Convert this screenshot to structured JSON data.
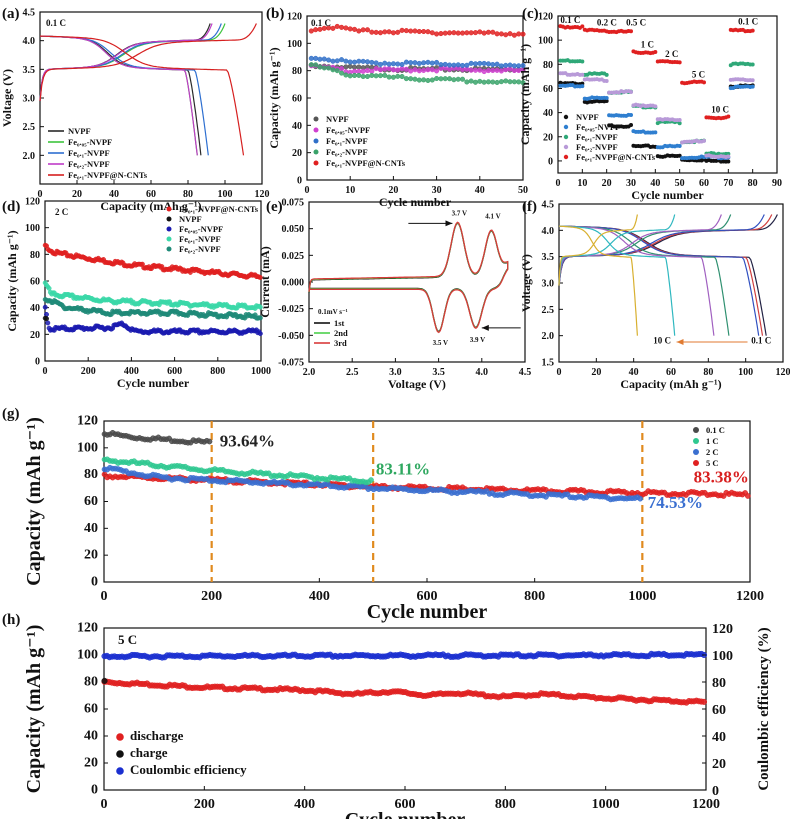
{
  "chart_data": [
    {
      "panel": "(a)",
      "type": "line",
      "xlabel": "Capacity (mAh g⁻¹)",
      "ylabel": "Voltage (V)",
      "xlim": [
        0,
        120
      ],
      "ylim": [
        1.5,
        4.5
      ],
      "xticks": [
        "0",
        "20",
        "40",
        "60",
        "80",
        "100",
        "120"
      ],
      "yticks": [
        "2.0",
        "2.5",
        "3.0",
        "3.5",
        "4.0",
        "4.5"
      ],
      "annotations": [
        {
          "text": "0.1 C"
        }
      ],
      "legend": "bottom-left",
      "series": [
        {
          "name": "NVPF",
          "color": "#2a2a2a",
          "charge_capacity": 92,
          "discharge_capacity": 87
        },
        {
          "name": "Fe₀.₀₅-NVPF",
          "color": "#3ec43e",
          "charge_capacity": 100,
          "discharge_capacity": 85
        },
        {
          "name": "Fe₀.₁-NVPF",
          "color": "#2e6fd0",
          "charge_capacity": 98,
          "discharge_capacity": 91
        },
        {
          "name": "Fe₀.₂-NVPF",
          "color": "#c03cc8",
          "charge_capacity": 93,
          "discharge_capacity": 85
        },
        {
          "name": "Fe₀.₁-NVPF@N-CNTs",
          "color": "#d62020",
          "charge_capacity": 117,
          "discharge_capacity": 110
        }
      ]
    },
    {
      "panel": "(b)",
      "type": "scatter",
      "xlabel": "Cycle number",
      "ylabel": "Capacity (mAh g⁻¹)",
      "xlim": [
        0,
        50
      ],
      "ylim": [
        0,
        120
      ],
      "xticks": [
        "0",
        "10",
        "20",
        "30",
        "40",
        "50"
      ],
      "yticks": [
        "0",
        "20",
        "40",
        "60",
        "80",
        "100",
        "120"
      ],
      "annotations": [
        {
          "text": "0.1 C"
        }
      ],
      "legend": "bottom-left",
      "series": [
        {
          "name": "NVPF",
          "color": "#555555",
          "points": [
            [
              1,
              84
            ],
            [
              10,
              82
            ],
            [
              25,
              81
            ],
            [
              50,
              81
            ]
          ]
        },
        {
          "name": "Fe₀.₀₅-NVPF",
          "color": "#d040d0",
          "points": [
            [
              1,
              83
            ],
            [
              10,
              80
            ],
            [
              30,
              81
            ],
            [
              50,
              80
            ]
          ]
        },
        {
          "name": "Fe₀.₁-NVPF",
          "color": "#2f6fc8",
          "points": [
            [
              1,
              90
            ],
            [
              10,
              86
            ],
            [
              30,
              85
            ],
            [
              50,
              84
            ]
          ]
        },
        {
          "name": "Fe₀.₂-NVPF",
          "color": "#3aa36a",
          "points": [
            [
              1,
              84
            ],
            [
              10,
              77
            ],
            [
              25,
              74
            ],
            [
              50,
              71
            ]
          ]
        },
        {
          "name": "Fe₀.₁-NVPF@N-CNTs",
          "color": "#e02020",
          "points": [
            [
              1,
              110
            ],
            [
              6,
              112
            ],
            [
              12,
              109
            ],
            [
              30,
              108
            ],
            [
              50,
              107
            ]
          ]
        }
      ]
    },
    {
      "panel": "(c)",
      "type": "scatter",
      "xlabel": "Cycle number",
      "ylabel": "Capacity (mAh g⁻¹)",
      "xlim": [
        0,
        90
      ],
      "ylim": [
        -10,
        120
      ],
      "xticks": [
        "0",
        "10",
        "20",
        "30",
        "40",
        "50",
        "60",
        "70",
        "80",
        "90"
      ],
      "yticks": [
        "0",
        "20",
        "40",
        "60",
        "80",
        "100",
        "120"
      ],
      "rates": [
        "0.1 C",
        "0.2 C",
        "0.5 C",
        "1 C",
        "2 C",
        "5 C",
        "10 C",
        "0.1 C"
      ],
      "cycles_per_rate": 10,
      "legend": "bottom-left",
      "series": [
        {
          "name": "NVPF",
          "color": "#111111",
          "values": [
            64,
            49,
            29,
            12,
            4,
            1,
            0,
            62
          ]
        },
        {
          "name": "Fe₀.₀₅-NVPF",
          "color": "#2f7fd0",
          "values": [
            62,
            52,
            38,
            24,
            12,
            3,
            3,
            61
          ]
        },
        {
          "name": "Fe₀.₁-NVPF",
          "color": "#2fa878",
          "values": [
            83,
            72,
            57,
            45,
            32,
            16,
            6,
            80
          ]
        },
        {
          "name": "Fe₀.₂-NVPF",
          "color": "#b89ad8",
          "values": [
            72,
            67,
            57,
            46,
            34,
            16,
            4,
            67
          ]
        },
        {
          "name": "Fe₀.₁-NVPF@N-CNTs",
          "color": "#e02020",
          "values": [
            111,
            108,
            107,
            90,
            82,
            65,
            36,
            108
          ]
        }
      ]
    },
    {
      "panel": "(d)",
      "type": "scatter",
      "xlabel": "Cycle number",
      "ylabel": "Capacity (mAh g⁻¹)",
      "xlim": [
        0,
        1000
      ],
      "ylim": [
        0,
        120
      ],
      "xticks": [
        "0",
        "200",
        "400",
        "600",
        "800",
        "1000"
      ],
      "yticks": [
        "0",
        "20",
        "40",
        "60",
        "80",
        "100",
        "120"
      ],
      "annotations": [
        {
          "text": "2 C"
        }
      ],
      "legend": "top-right",
      "series": [
        {
          "name": "Fe₀.₁-NVPF@N-CNTs",
          "color": "#e02020",
          "points": [
            [
              1,
              86
            ],
            [
              50,
              81
            ],
            [
              200,
              77
            ],
            [
              400,
              72
            ],
            [
              600,
              69
            ],
            [
              800,
              66
            ],
            [
              1000,
              63
            ]
          ]
        },
        {
          "name": "NVPF",
          "color": "#111111",
          "points": [
            [
              1,
              33
            ],
            [
              12,
              28
            ]
          ]
        },
        {
          "name": "Fe₀.₀₅-NVPF",
          "color": "#1a1ab0",
          "points": [
            [
              1,
              40
            ],
            [
              20,
              24
            ],
            [
              300,
              25
            ],
            [
              360,
              28
            ],
            [
              420,
              22
            ],
            [
              1000,
              22
            ]
          ]
        },
        {
          "name": "Fe₀.₁-NVPF",
          "color": "#3ad8a8",
          "points": [
            [
              1,
              58
            ],
            [
              30,
              50
            ],
            [
              300,
              45
            ],
            [
              600,
              43
            ],
            [
              1000,
              40
            ]
          ]
        },
        {
          "name": "Fe₀.₂-NVPF",
          "color": "#1f8a78",
          "points": [
            [
              1,
              47
            ],
            [
              100,
              40
            ],
            [
              300,
              36
            ],
            [
              600,
              36
            ],
            [
              1000,
              33
            ]
          ]
        }
      ]
    },
    {
      "panel": "(e)",
      "type": "line",
      "xlabel": "Voltage (V)",
      "ylabel": "Current (mA)",
      "xlim": [
        2.0,
        4.5
      ],
      "ylim": [
        -0.075,
        0.075
      ],
      "xticks": [
        "2.0",
        "2.5",
        "3.0",
        "3.5",
        "4.0",
        "4.5"
      ],
      "yticks": [
        "-0.075",
        "-0.050",
        "-0.025",
        "0.000",
        "0.025",
        "0.050",
        "0.075"
      ],
      "scan_rate": "0.1mV s⁻¹",
      "peaks": [
        {
          "label": "3.7 V",
          "voltage": 3.72,
          "current": 0.055
        },
        {
          "label": "4.1 V",
          "voltage": 4.11,
          "current": 0.052
        },
        {
          "label": "3.5 V",
          "voltage": 3.5,
          "current": -0.046
        },
        {
          "label": "3.9 V",
          "voltage": 3.93,
          "current": -0.043
        }
      ],
      "series": [
        {
          "name": "1st",
          "color": "#111111"
        },
        {
          "name": "2nd",
          "color": "#4cd04c"
        },
        {
          "name": "3rd",
          "color": "#d83a3a"
        }
      ]
    },
    {
      "panel": "(f)",
      "type": "line",
      "xlabel": "Capacity (mAh g⁻¹)",
      "ylabel": "Voltage (V)",
      "xlim": [
        0,
        120
      ],
      "ylim": [
        1.5,
        4.5
      ],
      "xticks": [
        "0",
        "20",
        "40",
        "60",
        "80",
        "100",
        "120"
      ],
      "yticks": [
        "1.5",
        "2.0",
        "2.5",
        "3.0",
        "3.5",
        "4.0",
        "4.5"
      ],
      "annotations": [
        {
          "text": "10 C"
        },
        {
          "text": "0.1 C"
        }
      ],
      "series": [
        {
          "color": "#222244",
          "charge_capacity": 117,
          "discharge_capacity": 111
        },
        {
          "color": "#d04040",
          "charge_capacity": 114,
          "discharge_capacity": 109
        },
        {
          "color": "#3050c0",
          "charge_capacity": 110,
          "discharge_capacity": 107
        },
        {
          "color": "#2f9070",
          "charge_capacity": 92,
          "discharge_capacity": 91
        },
        {
          "color": "#a060c0",
          "charge_capacity": 87,
          "discharge_capacity": 83
        },
        {
          "color": "#30b8c0",
          "charge_capacity": 62,
          "discharge_capacity": 62
        },
        {
          "color": "#d8b030",
          "charge_capacity": 42,
          "discharge_capacity": 42
        }
      ]
    },
    {
      "panel": "(g)",
      "type": "scatter",
      "xlabel": "Cycle number",
      "ylabel": "Capacity (mAh g⁻¹)",
      "xlim": [
        0,
        1200
      ],
      "ylim": [
        0,
        120
      ],
      "xticks": [
        "0",
        "200",
        "400",
        "600",
        "800",
        "1000",
        "1200"
      ],
      "yticks": [
        "0",
        "20",
        "40",
        "60",
        "80",
        "100",
        "120"
      ],
      "reference_lines": [
        200,
        500,
        1000
      ],
      "legend": "top-right",
      "series": [
        {
          "name": "0.1 C",
          "color": "#4a4a4a",
          "retention": "93.64%",
          "points": [
            [
              1,
              111
            ],
            [
              50,
              108
            ],
            [
              200,
              104
            ]
          ]
        },
        {
          "name": "1 C",
          "color": "#2fc890",
          "retention": "83.11%",
          "points": [
            [
              1,
              91
            ],
            [
              200,
              83
            ],
            [
              500,
              75
            ]
          ]
        },
        {
          "name": "2 C",
          "color": "#3a6fd0",
          "retention": "74.53%",
          "points": [
            [
              1,
              85
            ],
            [
              100,
              78
            ],
            [
              500,
              70
            ],
            [
              800,
              65
            ],
            [
              1000,
              62
            ]
          ]
        },
        {
          "name": "5 C",
          "color": "#e02020",
          "retention": "83.38%",
          "points": [
            [
              1,
              79
            ],
            [
              200,
              76
            ],
            [
              500,
              71
            ],
            [
              800,
              68
            ],
            [
              1200,
              65
            ]
          ]
        }
      ]
    },
    {
      "panel": "(h)",
      "type": "scatter",
      "xlabel": "Cycle number",
      "ylabel": "Capacity (mAh g⁻¹)",
      "ylabel_right": "Coulombic efficiency (%)",
      "xlim": [
        0,
        1200
      ],
      "ylim": [
        0,
        120
      ],
      "ylim_right": [
        0,
        120
      ],
      "xticks": [
        "0",
        "200",
        "400",
        "600",
        "800",
        "1000",
        "1200"
      ],
      "yticks": [
        "0",
        "20",
        "40",
        "60",
        "80",
        "100",
        "120"
      ],
      "annotations": [
        {
          "text": "5 C"
        }
      ],
      "legend": "bottom-left",
      "series": [
        {
          "name": "discharge",
          "color": "#e02020",
          "points": [
            [
              1,
              80
            ],
            [
              200,
              76
            ],
            [
              400,
              74
            ],
            [
              500,
              71
            ],
            [
              570,
              73
            ],
            [
              650,
              70
            ],
            [
              700,
              72
            ],
            [
              800,
              69
            ],
            [
              870,
              71
            ],
            [
              1000,
              68
            ],
            [
              1200,
              65
            ]
          ]
        },
        {
          "name": "charge",
          "color": "#111111",
          "points": [
            [
              1,
              81
            ]
          ]
        },
        {
          "name": "Coulombic efficiency",
          "color": "#1a2fd0",
          "points": [
            [
              1,
              99
            ],
            [
              1200,
              100
            ]
          ]
        }
      ]
    }
  ]
}
